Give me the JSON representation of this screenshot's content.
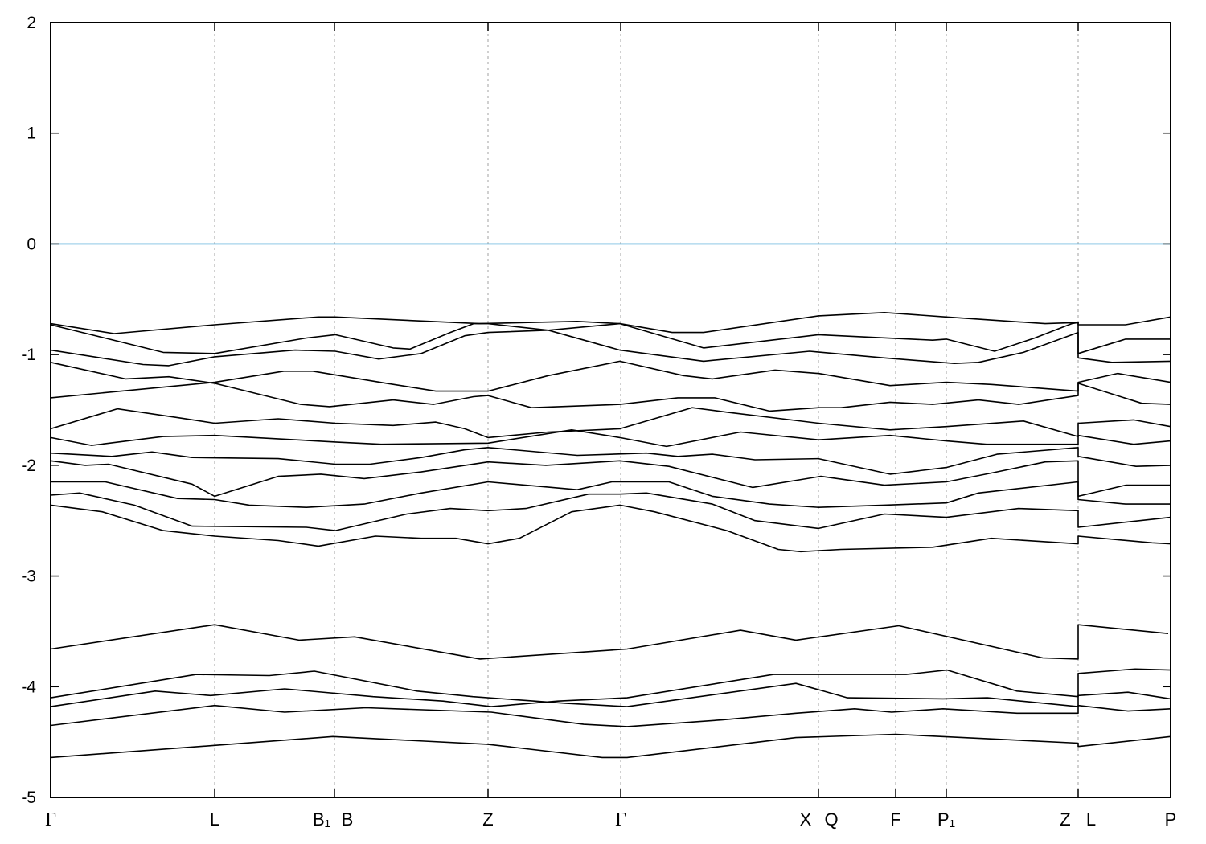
{
  "chart_data": {
    "type": "line",
    "title": "",
    "xlabel": "",
    "ylabel": "",
    "ylim": [
      -5,
      2
    ],
    "xlim": [
      0,
      13.93
    ],
    "yticks": [
      2,
      1,
      0,
      -1,
      -2,
      -3,
      -4,
      -5
    ],
    "xticks": [
      {
        "k": 0,
        "labels": [
          "Γ"
        ]
      },
      {
        "k": 2.04,
        "labels": [
          "L"
        ]
      },
      {
        "k": 3.53,
        "labels": [
          "B₁",
          "B"
        ]
      },
      {
        "k": 5.44,
        "labels": [
          "Z"
        ]
      },
      {
        "k": 7.09,
        "labels": [
          "Γ"
        ]
      },
      {
        "k": 9.55,
        "labels": [
          "X",
          "Q"
        ]
      },
      {
        "k": 10.51,
        "labels": [
          "F"
        ]
      },
      {
        "k": 11.14,
        "labels": [
          "P₁"
        ]
      },
      {
        "k": 12.78,
        "labels": [
          "Z",
          "L"
        ]
      },
      {
        "k": 13.93,
        "labels": [
          "P"
        ]
      }
    ],
    "vertical_grid": "dashed at interior high-symmetry points",
    "fermi_level": {
      "energy": 0,
      "color": "#4aa8d8"
    },
    "band_color": "#000000",
    "legend": "none",
    "bands": [
      [
        [
          0,
          -0.72
        ],
        [
          0.79,
          -0.81
        ],
        [
          2.04,
          -0.73
        ],
        [
          3.33,
          -0.66
        ],
        [
          3.54,
          -0.66
        ],
        [
          5.33,
          -0.72
        ],
        [
          6.55,
          -0.7
        ],
        [
          7.08,
          -0.72
        ],
        [
          7.73,
          -0.8
        ],
        [
          8.12,
          -0.8
        ],
        [
          9.55,
          -0.65
        ],
        [
          10.37,
          -0.62
        ],
        [
          11.14,
          -0.66
        ],
        [
          12.37,
          -0.72
        ],
        [
          12.78,
          -0.71
        ],
        [
          12.78,
          -0.73
        ],
        [
          13.37,
          -0.73
        ],
        [
          13.93,
          -0.66
        ]
      ],
      [
        [
          0,
          -0.73
        ],
        [
          1.4,
          -0.98
        ],
        [
          2.04,
          -0.99
        ],
        [
          3.18,
          -0.85
        ],
        [
          3.54,
          -0.82
        ],
        [
          4.26,
          -0.94
        ],
        [
          4.47,
          -0.95
        ],
        [
          4.97,
          -0.8
        ],
        [
          5.26,
          -0.72
        ],
        [
          5.44,
          -0.72
        ],
        [
          6.19,
          -0.78
        ],
        [
          7.08,
          -0.96
        ],
        [
          8.12,
          -1.06
        ],
        [
          9.44,
          -0.97
        ],
        [
          10.37,
          -1.03
        ],
        [
          11.24,
          -1.08
        ],
        [
          11.54,
          -1.07
        ],
        [
          12.1,
          -0.98
        ],
        [
          12.78,
          -0.8
        ],
        [
          12.78,
          -1.03
        ],
        [
          13.2,
          -1.07
        ],
        [
          13.93,
          -1.06
        ]
      ],
      [
        [
          0,
          -0.96
        ],
        [
          1.15,
          -1.09
        ],
        [
          1.47,
          -1.1
        ],
        [
          2.04,
          -1.02
        ],
        [
          3.04,
          -0.96
        ],
        [
          3.54,
          -0.97
        ],
        [
          4.08,
          -1.04
        ],
        [
          4.61,
          -0.99
        ],
        [
          5.15,
          -0.83
        ],
        [
          5.44,
          -0.8
        ],
        [
          6.19,
          -0.78
        ],
        [
          7.08,
          -0.72
        ],
        [
          8.12,
          -0.94
        ],
        [
          9.55,
          -0.82
        ],
        [
          10.97,
          -0.87
        ],
        [
          11.14,
          -0.86
        ],
        [
          11.74,
          -0.97
        ],
        [
          12.24,
          -0.85
        ],
        [
          12.7,
          -0.72
        ],
        [
          12.78,
          -0.71
        ],
        [
          12.78,
          -0.99
        ],
        [
          13.37,
          -0.86
        ],
        [
          13.93,
          -0.86
        ]
      ],
      [
        [
          0,
          -1.07
        ],
        [
          0.93,
          -1.22
        ],
        [
          1.47,
          -1.2
        ],
        [
          2.04,
          -1.26
        ],
        [
          3.11,
          -1.45
        ],
        [
          3.47,
          -1.47
        ],
        [
          4.26,
          -1.41
        ],
        [
          4.76,
          -1.45
        ],
        [
          5.26,
          -1.38
        ],
        [
          5.44,
          -1.37
        ],
        [
          5.98,
          -1.48
        ],
        [
          7.08,
          -1.45
        ],
        [
          7.8,
          -1.39
        ],
        [
          8.26,
          -1.39
        ],
        [
          8.94,
          -1.51
        ],
        [
          9.55,
          -1.48
        ],
        [
          9.83,
          -1.48
        ],
        [
          10.44,
          -1.43
        ],
        [
          10.97,
          -1.45
        ],
        [
          11.54,
          -1.41
        ],
        [
          12.04,
          -1.45
        ],
        [
          12.78,
          -1.37
        ],
        [
          12.78,
          -1.26
        ],
        [
          13.57,
          -1.44
        ],
        [
          13.93,
          -1.45
        ]
      ],
      [
        [
          0,
          -1.39
        ],
        [
          2.04,
          -1.25
        ],
        [
          2.9,
          -1.15
        ],
        [
          3.26,
          -1.15
        ],
        [
          4.18,
          -1.26
        ],
        [
          4.79,
          -1.33
        ],
        [
          5.44,
          -1.33
        ],
        [
          6.19,
          -1.19
        ],
        [
          7.08,
          -1.06
        ],
        [
          7.87,
          -1.19
        ],
        [
          8.23,
          -1.22
        ],
        [
          9.01,
          -1.14
        ],
        [
          9.55,
          -1.17
        ],
        [
          10.44,
          -1.28
        ],
        [
          11.14,
          -1.25
        ],
        [
          11.7,
          -1.27
        ],
        [
          12.78,
          -1.33
        ],
        [
          12.78,
          -1.25
        ],
        [
          13.27,
          -1.17
        ],
        [
          13.93,
          -1.25
        ]
      ],
      [
        [
          0,
          -1.67
        ],
        [
          0.83,
          -1.49
        ],
        [
          1.58,
          -1.57
        ],
        [
          2.04,
          -1.62
        ],
        [
          2.83,
          -1.58
        ],
        [
          3.54,
          -1.62
        ],
        [
          4.26,
          -1.64
        ],
        [
          4.79,
          -1.61
        ],
        [
          5.15,
          -1.67
        ],
        [
          5.44,
          -1.75
        ],
        [
          6.19,
          -1.7
        ],
        [
          7.08,
          -1.67
        ],
        [
          7.98,
          -1.48
        ],
        [
          8.41,
          -1.52
        ],
        [
          9.55,
          -1.62
        ],
        [
          10.44,
          -1.68
        ],
        [
          11.14,
          -1.65
        ],
        [
          12.1,
          -1.6
        ],
        [
          12.78,
          -1.74
        ],
        [
          12.78,
          -1.62
        ],
        [
          13.47,
          -1.59
        ],
        [
          13.93,
          -1.65
        ]
      ],
      [
        [
          0,
          -1.75
        ],
        [
          0.51,
          -1.82
        ],
        [
          1.4,
          -1.74
        ],
        [
          2.04,
          -1.73
        ],
        [
          3.54,
          -1.79
        ],
        [
          4.11,
          -1.81
        ],
        [
          5.44,
          -1.8
        ],
        [
          6.48,
          -1.68
        ],
        [
          7.08,
          -1.75
        ],
        [
          7.66,
          -1.83
        ],
        [
          8.58,
          -1.7
        ],
        [
          9.55,
          -1.77
        ],
        [
          10.44,
          -1.73
        ],
        [
          11.14,
          -1.78
        ],
        [
          11.64,
          -1.81
        ],
        [
          12.78,
          -1.81
        ],
        [
          12.78,
          -1.73
        ],
        [
          13.47,
          -1.81
        ],
        [
          13.93,
          -1.78
        ]
      ],
      [
        [
          0,
          -1.89
        ],
        [
          0.76,
          -1.92
        ],
        [
          1.26,
          -1.88
        ],
        [
          1.76,
          -1.93
        ],
        [
          2.83,
          -1.94
        ],
        [
          3.54,
          -1.99
        ],
        [
          3.97,
          -1.99
        ],
        [
          4.61,
          -1.93
        ],
        [
          5.15,
          -1.86
        ],
        [
          5.44,
          -1.84
        ],
        [
          6.55,
          -1.91
        ],
        [
          7.41,
          -1.89
        ],
        [
          7.8,
          -1.92
        ],
        [
          8.23,
          -1.9
        ],
        [
          8.76,
          -1.95
        ],
        [
          9.55,
          -1.94
        ],
        [
          10.44,
          -2.08
        ],
        [
          11.14,
          -2.02
        ],
        [
          11.77,
          -1.9
        ],
        [
          12.78,
          -1.84
        ],
        [
          12.78,
          -1.92
        ],
        [
          13.5,
          -2.01
        ],
        [
          13.93,
          -2.0
        ]
      ],
      [
        [
          0,
          -1.96
        ],
        [
          0.43,
          -2.0
        ],
        [
          0.72,
          -1.99
        ],
        [
          1.76,
          -2.17
        ],
        [
          2.04,
          -2.28
        ],
        [
          2.83,
          -2.1
        ],
        [
          3.36,
          -2.08
        ],
        [
          3.9,
          -2.12
        ],
        [
          4.61,
          -2.06
        ],
        [
          5.44,
          -1.97
        ],
        [
          6.16,
          -2.0
        ],
        [
          7.08,
          -1.96
        ],
        [
          7.69,
          -2.01
        ],
        [
          8.73,
          -2.2
        ],
        [
          9.58,
          -2.1
        ],
        [
          10.37,
          -2.18
        ],
        [
          11.14,
          -2.15
        ],
        [
          11.7,
          -2.07
        ],
        [
          12.37,
          -1.97
        ],
        [
          12.78,
          -1.96
        ],
        [
          12.78,
          -2.28
        ],
        [
          13.37,
          -2.18
        ],
        [
          13.93,
          -2.18
        ]
      ],
      [
        [
          0,
          -2.15
        ],
        [
          0.68,
          -2.15
        ],
        [
          1.58,
          -2.3
        ],
        [
          2.04,
          -2.31
        ],
        [
          2.47,
          -2.36
        ],
        [
          3.18,
          -2.38
        ],
        [
          3.9,
          -2.35
        ],
        [
          4.61,
          -2.25
        ],
        [
          5.44,
          -2.15
        ],
        [
          6.55,
          -2.22
        ],
        [
          6.98,
          -2.15
        ],
        [
          7.69,
          -2.15
        ],
        [
          8.23,
          -2.28
        ],
        [
          8.94,
          -2.35
        ],
        [
          9.55,
          -2.38
        ],
        [
          10.37,
          -2.36
        ],
        [
          11.14,
          -2.34
        ],
        [
          11.54,
          -2.25
        ],
        [
          12.78,
          -2.15
        ],
        [
          12.78,
          -2.31
        ],
        [
          13.37,
          -2.35
        ],
        [
          13.93,
          -2.35
        ]
      ],
      [
        [
          0,
          -2.27
        ],
        [
          0.36,
          -2.25
        ],
        [
          1.04,
          -2.36
        ],
        [
          1.76,
          -2.55
        ],
        [
          3.18,
          -2.56
        ],
        [
          3.54,
          -2.59
        ],
        [
          4.43,
          -2.44
        ],
        [
          4.97,
          -2.39
        ],
        [
          5.44,
          -2.41
        ],
        [
          5.91,
          -2.39
        ],
        [
          6.69,
          -2.26
        ],
        [
          7.08,
          -2.26
        ],
        [
          7.41,
          -2.25
        ],
        [
          8.23,
          -2.35
        ],
        [
          8.76,
          -2.5
        ],
        [
          9.55,
          -2.57
        ],
        [
          10.37,
          -2.44
        ],
        [
          11.14,
          -2.47
        ],
        [
          12.04,
          -2.39
        ],
        [
          12.78,
          -2.41
        ],
        [
          12.78,
          -2.56
        ],
        [
          13.93,
          -2.47
        ]
      ],
      [
        [
          0,
          -2.36
        ],
        [
          0.64,
          -2.42
        ],
        [
          1.4,
          -2.59
        ],
        [
          2.04,
          -2.64
        ],
        [
          2.83,
          -2.68
        ],
        [
          3.33,
          -2.73
        ],
        [
          4.04,
          -2.64
        ],
        [
          4.61,
          -2.66
        ],
        [
          5.04,
          -2.66
        ],
        [
          5.44,
          -2.71
        ],
        [
          5.83,
          -2.66
        ],
        [
          6.48,
          -2.42
        ],
        [
          7.08,
          -2.36
        ],
        [
          7.51,
          -2.42
        ],
        [
          8.41,
          -2.59
        ],
        [
          9.05,
          -2.76
        ],
        [
          9.33,
          -2.78
        ],
        [
          9.83,
          -2.76
        ],
        [
          10.97,
          -2.74
        ],
        [
          11.7,
          -2.66
        ],
        [
          12.78,
          -2.71
        ],
        [
          12.78,
          -2.64
        ],
        [
          13.7,
          -2.7
        ],
        [
          13.93,
          -2.71
        ]
      ],
      [
        [
          0,
          -3.66
        ],
        [
          2.04,
          -3.44
        ],
        [
          3.09,
          -3.58
        ],
        [
          3.78,
          -3.55
        ],
        [
          5.34,
          -3.75
        ],
        [
          7.17,
          -3.66
        ],
        [
          8.58,
          -3.49
        ],
        [
          9.27,
          -3.58
        ],
        [
          10.55,
          -3.45
        ],
        [
          12.34,
          -3.74
        ],
        [
          12.78,
          -3.75
        ],
        [
          12.78,
          -3.44
        ],
        [
          13.9,
          -3.52
        ]
      ],
      [
        [
          0,
          -4.1
        ],
        [
          1.81,
          -3.89
        ],
        [
          2.72,
          -3.9
        ],
        [
          3.28,
          -3.86
        ],
        [
          4.56,
          -4.04
        ],
        [
          5.25,
          -4.09
        ],
        [
          6.4,
          -4.15
        ],
        [
          7.17,
          -4.18
        ],
        [
          9.27,
          -3.97
        ],
        [
          9.91,
          -4.1
        ],
        [
          11.1,
          -4.11
        ],
        [
          11.65,
          -4.1
        ],
        [
          12.78,
          -4.18
        ],
        [
          12.78,
          -4.08
        ],
        [
          13.4,
          -4.05
        ],
        [
          13.93,
          -4.11
        ]
      ],
      [
        [
          0,
          -4.18
        ],
        [
          1.3,
          -4.04
        ],
        [
          1.99,
          -4.08
        ],
        [
          2.91,
          -4.02
        ],
        [
          4.01,
          -4.09
        ],
        [
          4.88,
          -4.13
        ],
        [
          5.48,
          -4.18
        ],
        [
          6.31,
          -4.13
        ],
        [
          7.17,
          -4.1
        ],
        [
          8.99,
          -3.89
        ],
        [
          10.64,
          -3.89
        ],
        [
          11.15,
          -3.85
        ],
        [
          12.02,
          -4.04
        ],
        [
          12.78,
          -4.09
        ],
        [
          12.78,
          -3.88
        ],
        [
          13.49,
          -3.84
        ],
        [
          13.93,
          -3.85
        ]
      ],
      [
        [
          0,
          -4.35
        ],
        [
          2.04,
          -4.17
        ],
        [
          2.91,
          -4.23
        ],
        [
          3.92,
          -4.19
        ],
        [
          5.48,
          -4.23
        ],
        [
          6.63,
          -4.34
        ],
        [
          7.17,
          -4.36
        ],
        [
          8.35,
          -4.3
        ],
        [
          9.27,
          -4.24
        ],
        [
          10.0,
          -4.2
        ],
        [
          10.46,
          -4.23
        ],
        [
          11.1,
          -4.2
        ],
        [
          12.02,
          -4.24
        ],
        [
          12.78,
          -4.24
        ],
        [
          12.78,
          -4.17
        ],
        [
          13.4,
          -4.22
        ],
        [
          13.93,
          -4.2
        ]
      ],
      [
        [
          0,
          -4.64
        ],
        [
          2.04,
          -4.53
        ],
        [
          3.51,
          -4.45
        ],
        [
          5.43,
          -4.52
        ],
        [
          6.86,
          -4.64
        ],
        [
          7.17,
          -4.64
        ],
        [
          9.27,
          -4.46
        ],
        [
          10.51,
          -4.43
        ],
        [
          12.78,
          -4.51
        ],
        [
          12.78,
          -4.54
        ],
        [
          13.93,
          -4.45
        ]
      ]
    ]
  }
}
